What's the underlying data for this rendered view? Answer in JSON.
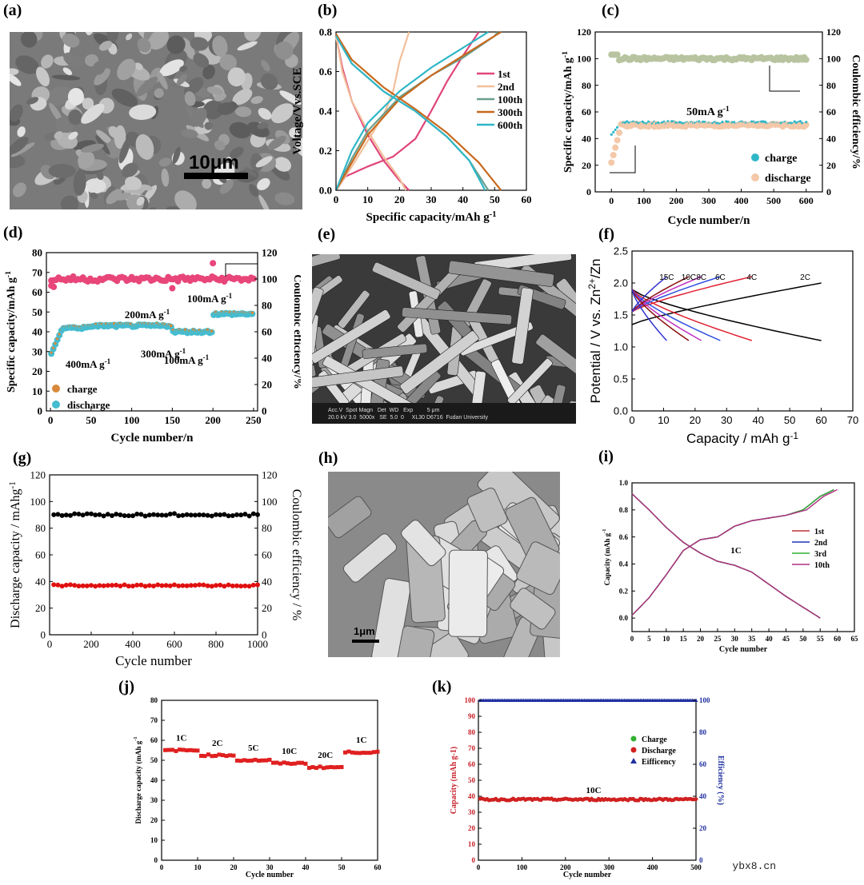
{
  "panel_labels": {
    "a": "(a)",
    "b": "(b)",
    "c": "(c)",
    "d": "(d)",
    "e": "(e)",
    "f": "(f)",
    "g": "(g)",
    "h": "(h)",
    "i": "(i)",
    "j": "(j)",
    "k": "(k)"
  },
  "sem_a": {
    "scale": "10μm"
  },
  "sem_e": {
    "info": "Acc.V  Spot Magn   Det  WD   Exp         5 μm",
    "info2": "20.0 kV 3.0  5000x   SE  5.0  0     XL30 D6716  Fudan University"
  },
  "sem_h": {
    "scale": "1μm"
  },
  "watermark": "ybx8.cn",
  "chart_data": [
    {
      "id": "b",
      "type": "line",
      "xlabel": "Specific capacity/mAh g-1",
      "ylabel": "Voltage/Vvs.SCE",
      "xlim": [
        0,
        60
      ],
      "ylim": [
        0,
        0.8
      ],
      "xticks": [
        "0",
        "10",
        "20",
        "30",
        "40",
        "50",
        "60"
      ],
      "yticks": [
        "0.0",
        "0.2",
        "0.4",
        "0.6",
        "0.8"
      ],
      "legend": "right",
      "series": [
        {
          "name": "1st",
          "color": "#e0457b",
          "charge": [
            [
              0,
              0
            ],
            [
              3,
              0.07
            ],
            [
              10,
              0.12
            ],
            [
              18,
              0.17
            ],
            [
              25,
              0.26
            ],
            [
              30,
              0.4
            ],
            [
              35,
              0.55
            ],
            [
              40,
              0.68
            ],
            [
              45,
              0.8
            ]
          ],
          "discharge": [
            [
              0,
              0.78
            ],
            [
              2,
              0.62
            ],
            [
              5,
              0.45
            ],
            [
              10,
              0.28
            ],
            [
              15,
              0.15
            ],
            [
              20,
              0.05
            ],
            [
              23,
              0
            ]
          ]
        },
        {
          "name": "2nd",
          "color": "#f2bf9a",
          "charge": [
            [
              0,
              0
            ],
            [
              5,
              0.12
            ],
            [
              10,
              0.25
            ],
            [
              15,
              0.38
            ],
            [
              18,
              0.5
            ],
            [
              20,
              0.65
            ],
            [
              23,
              0.8
            ]
          ],
          "discharge": [
            [
              0,
              0.78
            ],
            [
              2,
              0.6
            ],
            [
              5,
              0.45
            ],
            [
              10,
              0.3
            ],
            [
              15,
              0.17
            ],
            [
              20,
              0.06
            ],
            [
              22,
              0
            ]
          ]
        },
        {
          "name": "100th",
          "color": "#6a9f8c",
          "charge": [
            [
              0,
              0
            ],
            [
              5,
              0.16
            ],
            [
              10,
              0.3
            ],
            [
              20,
              0.47
            ],
            [
              30,
              0.58
            ],
            [
              40,
              0.67
            ],
            [
              50,
              0.78
            ],
            [
              51,
              0.8
            ]
          ],
          "discharge": [
            [
              0,
              0.79
            ],
            [
              5,
              0.64
            ],
            [
              15,
              0.5
            ],
            [
              25,
              0.4
            ],
            [
              35,
              0.27
            ],
            [
              42,
              0.15
            ],
            [
              48,
              0
            ]
          ]
        },
        {
          "name": "300th",
          "color": "#c8691e",
          "charge": [
            [
              0,
              0
            ],
            [
              5,
              0.14
            ],
            [
              10,
              0.28
            ],
            [
              20,
              0.46
            ],
            [
              30,
              0.58
            ],
            [
              40,
              0.68
            ],
            [
              50,
              0.78
            ],
            [
              52,
              0.8
            ]
          ],
          "discharge": [
            [
              0,
              0.79
            ],
            [
              5,
              0.66
            ],
            [
              15,
              0.52
            ],
            [
              25,
              0.41
            ],
            [
              35,
              0.29
            ],
            [
              45,
              0.14
            ],
            [
              52,
              0
            ]
          ]
        },
        {
          "name": "600th",
          "color": "#2fb7c7",
          "charge": [
            [
              0,
              0
            ],
            [
              5,
              0.2
            ],
            [
              10,
              0.34
            ],
            [
              20,
              0.5
            ],
            [
              30,
              0.62
            ],
            [
              40,
              0.72
            ],
            [
              48,
              0.8
            ]
          ],
          "discharge": [
            [
              0,
              0.78
            ],
            [
              5,
              0.64
            ],
            [
              15,
              0.5
            ],
            [
              25,
              0.4
            ],
            [
              35,
              0.27
            ],
            [
              42,
              0.15
            ],
            [
              47,
              0
            ]
          ]
        }
      ]
    },
    {
      "id": "c",
      "type": "scatter",
      "xlabel": "Cycle number/n",
      "ylabel": "Specific capacity/mAh g-1",
      "ylabel2": "Coulombic efficiency/%",
      "xlim": [
        -50,
        650
      ],
      "ylim": [
        0,
        120
      ],
      "y2lim": [
        0,
        120
      ],
      "xticks": [
        "0",
        "100",
        "200",
        "300",
        "400",
        "500",
        "600"
      ],
      "yticks": [
        "0",
        "20",
        "40",
        "60",
        "80",
        "100",
        "120"
      ],
      "annotation": "50mA g-1",
      "legend_charge": "charge",
      "legend_discharge": "discharge",
      "efficiency_level": 100,
      "capacity_level": 52,
      "discharge_level": 50,
      "charge_start": 43,
      "discharge_start": 22
    },
    {
      "id": "d",
      "type": "scatter",
      "xlabel": "Cycle number/n",
      "ylabel": "Specific capacity/mAh g-1",
      "ylabel2": "Coulombic efficiency/%",
      "xlim": [
        -5,
        255
      ],
      "ylim": [
        0,
        80
      ],
      "y2lim": [
        0,
        120
      ],
      "xticks": [
        "0",
        "50",
        "100",
        "150",
        "200",
        "250"
      ],
      "yticks": [
        "0",
        "10",
        "20",
        "30",
        "40",
        "50",
        "60",
        "70",
        "80"
      ],
      "y2ticks": [
        "0",
        "20",
        "40",
        "60",
        "80",
        "100",
        "120"
      ],
      "annotations": [
        "200mA g-1",
        "300mA g-1",
        "400mA g-1",
        "100mA g-1",
        "100mA g-1"
      ],
      "legend_charge": "charge",
      "legend_discharge": "discharge",
      "segments": [
        [
          0,
          50,
          42
        ],
        [
          50,
          100,
          43
        ],
        [
          100,
          150,
          43
        ],
        [
          150,
          200,
          40
        ],
        [
          200,
          250,
          49
        ]
      ]
    },
    {
      "id": "f",
      "type": "line",
      "xlabel": "Capacity / mAh g-1",
      "ylabel": "Potential / V vs. Zn2+/Zn",
      "xlim": [
        0,
        70
      ],
      "ylim": [
        0,
        2.5
      ],
      "xticks": [
        "0",
        "10",
        "20",
        "30",
        "40",
        "50",
        "60",
        "70"
      ],
      "yticks": [
        "0.0",
        "0.5",
        "1.0",
        "1.5",
        "2.0",
        "2.5"
      ],
      "series": [
        {
          "name": "2C",
          "color": "#000000",
          "cap": 60
        },
        {
          "name": "4C",
          "color": "#e02030",
          "cap": 38
        },
        {
          "name": "6C",
          "color": "#3050e0",
          "cap": 28
        },
        {
          "name": "8C",
          "color": "#c030c0",
          "cap": 22
        },
        {
          "name": "10C",
          "color": "#8a1010",
          "cap": 18
        },
        {
          "name": "15C",
          "color": "#3333cc",
          "cap": 11
        }
      ]
    },
    {
      "id": "g",
      "type": "scatter",
      "xlabel": "Cycle number",
      "ylabel": "Discharge capacity / mAhg-1",
      "ylabel2": "Coulombic efficiency / %",
      "xlim": [
        0,
        1000
      ],
      "ylim": [
        0,
        120
      ],
      "y2lim": [
        0,
        120
      ],
      "xticks": [
        "0",
        "200",
        "400",
        "600",
        "800",
        "1000"
      ],
      "yticks": [
        "0",
        "20",
        "40",
        "60",
        "80",
        "100",
        "120"
      ],
      "efficiency_level": 90,
      "capacity_level": 37
    },
    {
      "id": "i",
      "type": "line",
      "xlabel": "Cycle number",
      "ylabel": "Capacity (mAh g-1)",
      "xlim": [
        0,
        65
      ],
      "ylim": [
        -0.1,
        1.0
      ],
      "xticks": [
        "0",
        "5",
        "10",
        "15",
        "20",
        "25",
        "30",
        "35",
        "40",
        "45",
        "50",
        "55",
        "60",
        "65"
      ],
      "yticks": [
        "0.0",
        "0.2",
        "0.4",
        "0.6",
        "0.8",
        "1.0"
      ],
      "annotation": "1C",
      "series": [
        {
          "name": "1st",
          "color": "#c0303a"
        },
        {
          "name": "2nd",
          "color": "#2030c0"
        },
        {
          "name": "3rd",
          "color": "#30b030"
        },
        {
          "name": "10th",
          "color": "#b03080"
        }
      ]
    },
    {
      "id": "j",
      "type": "scatter",
      "xlabel": "Cycle number",
      "ylabel": "Discharge capacity (mAh g-1)",
      "xlim": [
        0,
        60
      ],
      "ylim": [
        0,
        80
      ],
      "xticks": [
        "0",
        "10",
        "20",
        "30",
        "40",
        "50",
        "60"
      ],
      "yticks": [
        "0",
        "10",
        "20",
        "30",
        "40",
        "50",
        "60",
        "70",
        "80"
      ],
      "rates": [
        {
          "name": "1C",
          "start": 1,
          "end": 10,
          "value": 55
        },
        {
          "name": "2C",
          "start": 11,
          "end": 20,
          "value": 52.5
        },
        {
          "name": "5C",
          "start": 21,
          "end": 30,
          "value": 50
        },
        {
          "name": "10C",
          "start": 31,
          "end": 40,
          "value": 48.5
        },
        {
          "name": "20C",
          "start": 41,
          "end": 50,
          "value": 46.5
        },
        {
          "name": "1C",
          "start": 51,
          "end": 60,
          "value": 54
        }
      ]
    },
    {
      "id": "k",
      "type": "scatter",
      "xlabel": "Cycle number",
      "ylabel": "Capacity (mAh g-1)",
      "ylabel2": "Efficiency (%)",
      "xlim": [
        0,
        500
      ],
      "ylim": [
        0,
        100
      ],
      "y2lim": [
        0,
        100
      ],
      "xticks": [
        "0",
        "100",
        "200",
        "300",
        "400",
        "500"
      ],
      "yticks": [
        "0",
        "10",
        "20",
        "30",
        "40",
        "50",
        "60",
        "70",
        "80",
        "90",
        "100"
      ],
      "y2ticks": [
        "0",
        "20",
        "40",
        "60",
        "80",
        "100"
      ],
      "annotation": "10C",
      "legend": [
        "Charge",
        "Discharge",
        "Eifficency"
      ],
      "efficiency_level": 100,
      "capacity_level": 38
    }
  ]
}
